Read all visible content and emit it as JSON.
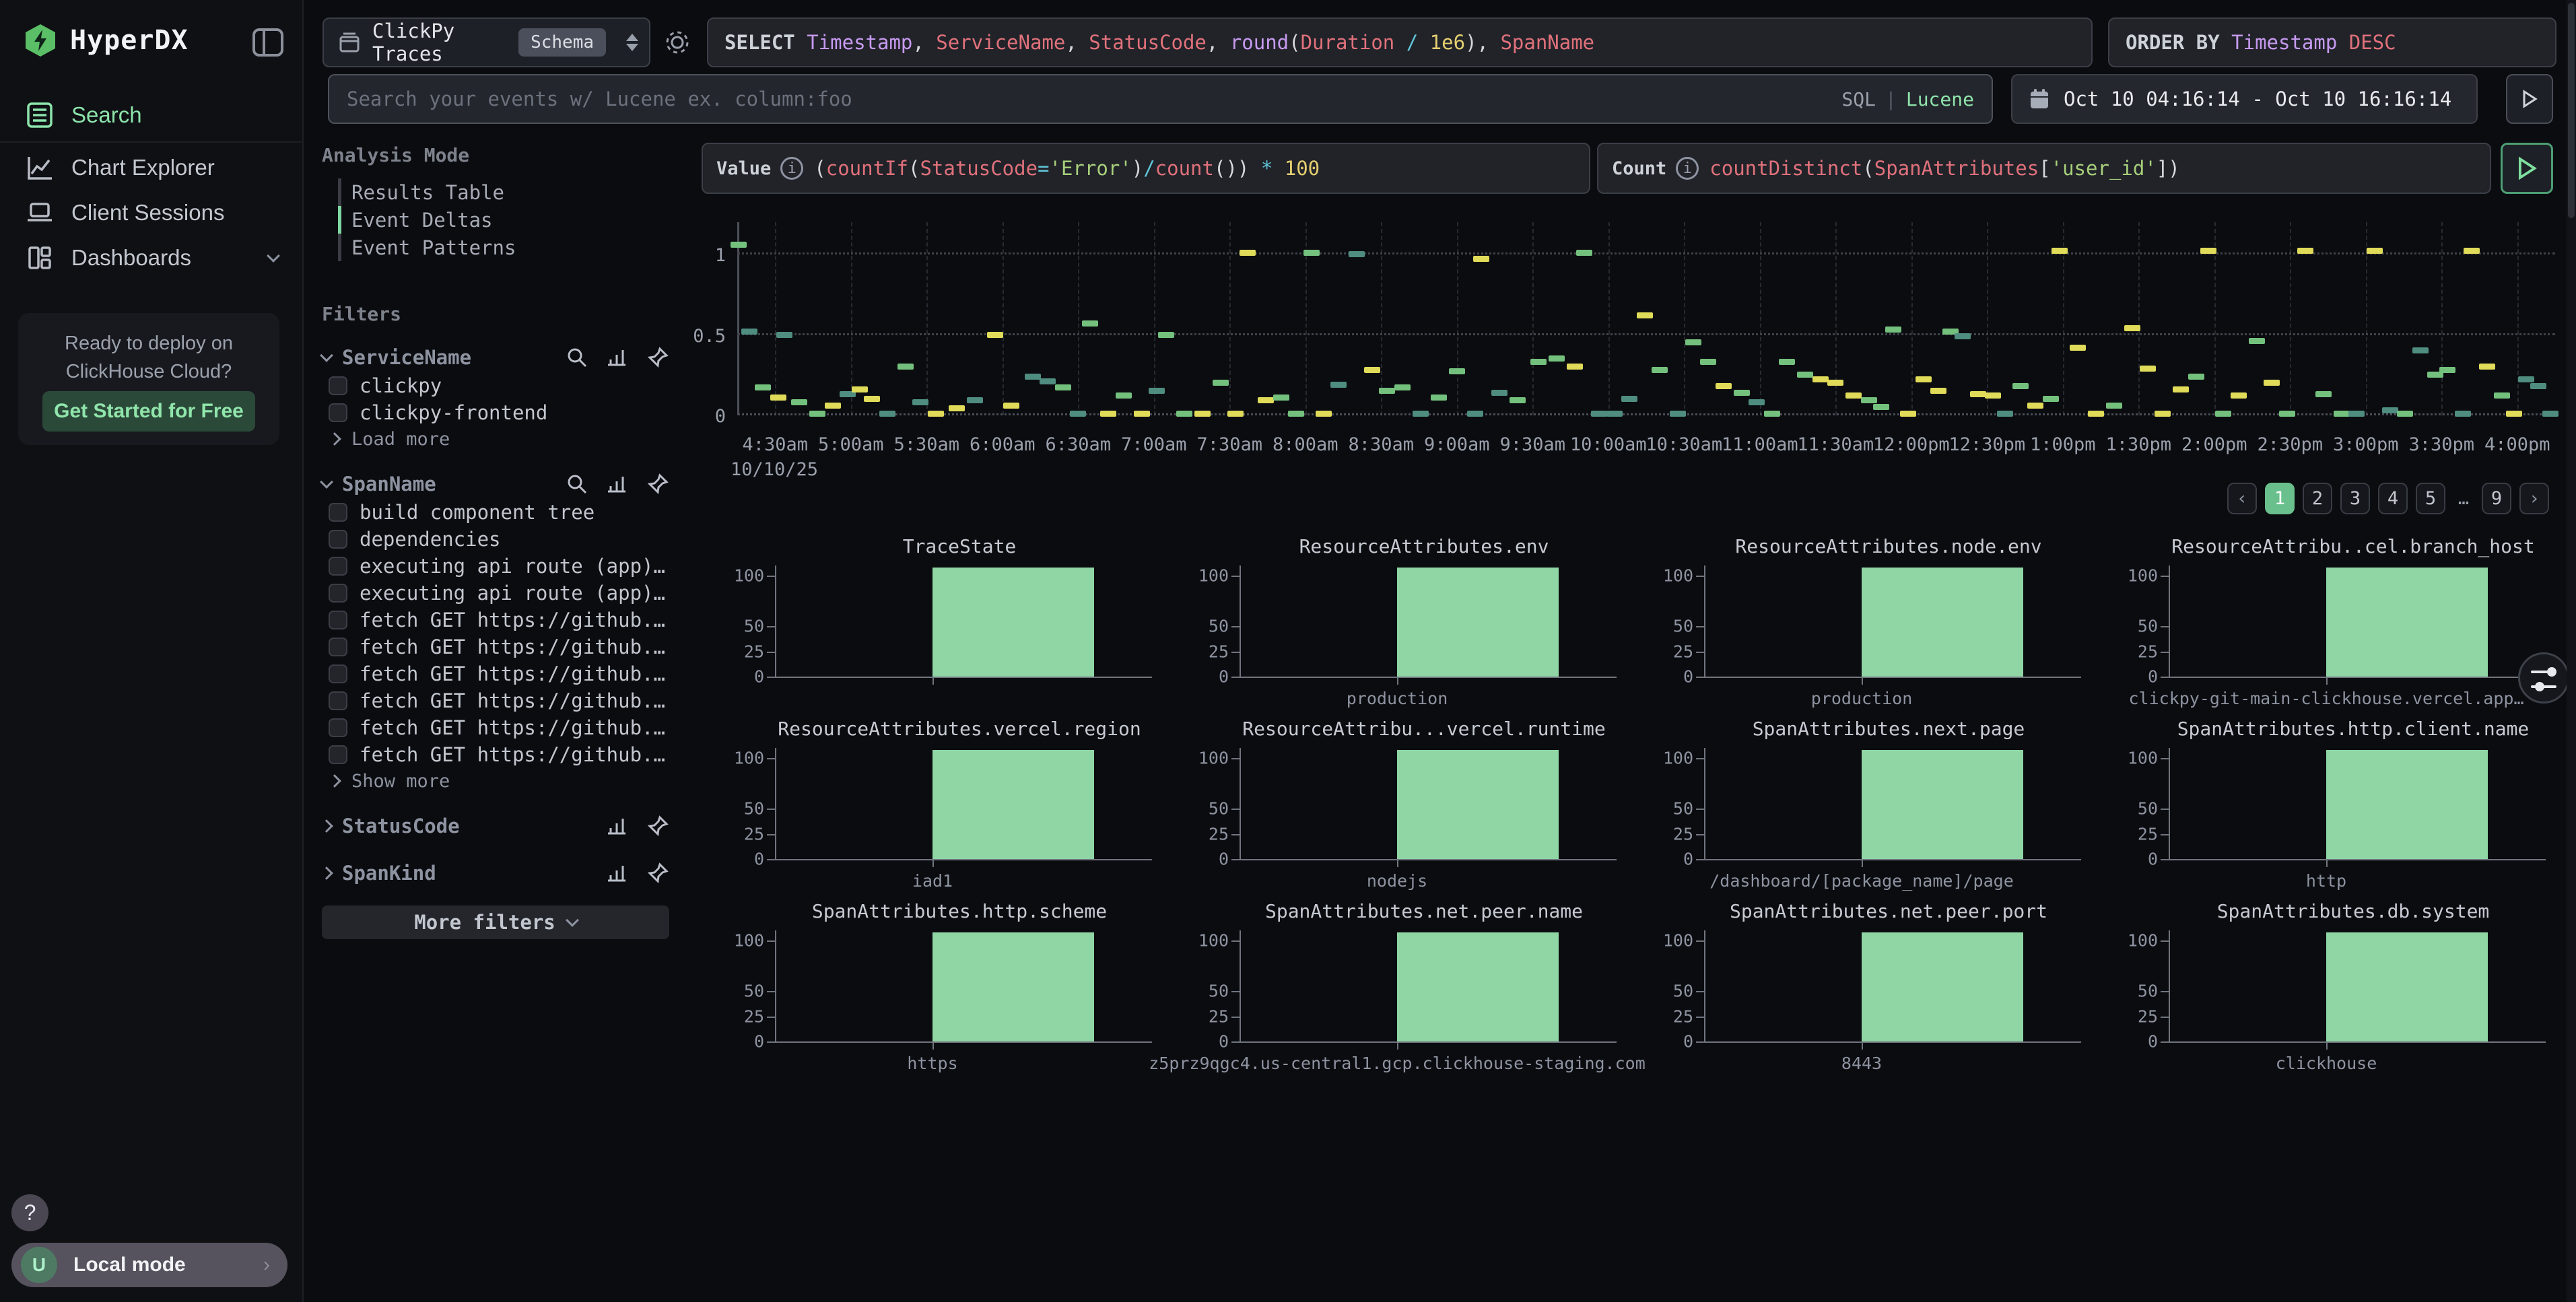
{
  "app_title": "HyperDX",
  "sidebar": {
    "nav": [
      {
        "label": "Search",
        "active": true
      },
      {
        "label": "Chart Explorer",
        "active": false
      },
      {
        "label": "Client Sessions",
        "active": false
      },
      {
        "label": "Dashboards",
        "active": false
      }
    ],
    "promo": {
      "line1": "Ready to deploy on",
      "line2": "ClickHouse Cloud?",
      "cta": "Get Started for Free"
    },
    "help_label": "?",
    "local_mode": {
      "avatar": "U",
      "label": "Local mode"
    }
  },
  "topbar": {
    "source": {
      "name": "ClickPy Traces",
      "badge": "Schema"
    },
    "select": {
      "keyword": "SELECT",
      "tokens": [
        [
          "Timestamp",
          "purple"
        ],
        [
          ", ",
          "fg"
        ],
        [
          "ServiceName",
          "red"
        ],
        [
          ", ",
          "fg"
        ],
        [
          "StatusCode",
          "red"
        ],
        [
          ", ",
          "fg"
        ],
        [
          "round",
          "purple"
        ],
        [
          "(",
          "fg"
        ],
        [
          "Duration",
          "red"
        ],
        [
          " / ",
          "cyan"
        ],
        [
          "1e6",
          "yellow"
        ],
        [
          "), ",
          "fg"
        ],
        [
          "SpanName",
          "red"
        ]
      ]
    },
    "order_by": {
      "keyword": "ORDER BY",
      "tokens": [
        [
          "Timestamp",
          "purple"
        ],
        [
          " DESC",
          "red"
        ]
      ]
    },
    "search": {
      "placeholder": "Search your events w/ Lucene ex. column:foo",
      "mode_sql": "SQL",
      "mode_sep": "|",
      "mode_lucene": "Lucene"
    },
    "date_range": "Oct 10 04:16:14 - Oct 10 16:16:14"
  },
  "analysis_mode": {
    "title": "Analysis Mode",
    "options": [
      "Results Table",
      "Event Deltas",
      "Event Patterns"
    ],
    "active_index": 1
  },
  "filters": {
    "title": "Filters",
    "groups": [
      {
        "name": "ServiceName",
        "expanded": true,
        "icons": [
          "search",
          "bars",
          "pin"
        ],
        "items": [
          "clickpy",
          "clickpy-frontend"
        ],
        "more": "Load more"
      },
      {
        "name": "SpanName",
        "expanded": true,
        "icons": [
          "search",
          "bars",
          "pin"
        ],
        "items": [
          "build component tree",
          "dependencies",
          "executing api route (app)…",
          "executing api route (app)…",
          "fetch GET https://github.…",
          "fetch GET https://github.…",
          "fetch GET https://github.…",
          "fetch GET https://github.…",
          "fetch GET https://github.…",
          "fetch GET https://github.…"
        ],
        "more": "Show more"
      },
      {
        "name": "StatusCode",
        "expanded": false,
        "icons": [
          "bars",
          "pin"
        ],
        "items": [],
        "more": ""
      },
      {
        "name": "SpanKind",
        "expanded": false,
        "icons": [
          "bars",
          "pin"
        ],
        "items": [],
        "more": ""
      }
    ],
    "more_filters": "More filters"
  },
  "expressions": {
    "value": {
      "label": "Value",
      "tokens": [
        [
          "(",
          "fg"
        ],
        [
          "countIf",
          "red"
        ],
        [
          "(",
          "fg"
        ],
        [
          "StatusCode",
          "red"
        ],
        [
          "=",
          "cyan"
        ],
        [
          "'Error'",
          "green"
        ],
        [
          ")",
          "fg"
        ],
        [
          "/",
          "cyan"
        ],
        [
          "count",
          "red"
        ],
        [
          "())",
          "fg"
        ],
        [
          " * ",
          "cyan"
        ],
        [
          "100",
          "yellow"
        ]
      ]
    },
    "count": {
      "label": "Count",
      "tokens": [
        [
          "countDistinct",
          "red"
        ],
        [
          "(",
          "fg"
        ],
        [
          "SpanAttributes",
          "red"
        ],
        [
          "[",
          "fg"
        ],
        [
          "'user_id'",
          "green"
        ],
        [
          "])",
          "fg"
        ]
      ]
    }
  },
  "pagination": {
    "prev": "‹",
    "pages": [
      "1",
      "2",
      "3",
      "4",
      "5",
      "…",
      "9"
    ],
    "active": "1",
    "next": "›"
  },
  "chart_data": [
    {
      "type": "scatter",
      "title": "Event Deltas timeline",
      "x_domain": [
        4.25,
        16.25
      ],
      "x_tick_start": 4.5,
      "x_tick_step": 0.5,
      "x_tick_labels": [
        "4:30am",
        "5:00am",
        "5:30am",
        "6:00am",
        "6:30am",
        "7:00am",
        "7:30am",
        "8:00am",
        "8:30am",
        "9:00am",
        "9:30am",
        "10:00am",
        "10:30am",
        "11:00am",
        "11:30am",
        "12:00pm",
        "12:30pm",
        "1:00pm",
        "1:30pm",
        "2:00pm",
        "2:30pm",
        "3:00pm",
        "3:30pm",
        "4:00pm"
      ],
      "x_axis_date": "10/10/25",
      "y_ticks": [
        "0",
        "0.5",
        "1"
      ],
      "y_domain": [
        0,
        1.2
      ],
      "grid": true,
      "palette": [
        "#e0db59",
        "#74c17e",
        "#4f8d80"
      ],
      "marks": [
        [
          4.26,
          1.06,
          1
        ],
        [
          4.33,
          0.52,
          2
        ],
        [
          4.56,
          0.5,
          2
        ],
        [
          4.42,
          0.17,
          1
        ],
        [
          4.52,
          0.11,
          0
        ],
        [
          4.66,
          0.08,
          1
        ],
        [
          4.78,
          0.01,
          1
        ],
        [
          4.88,
          0.06,
          0
        ],
        [
          4.98,
          0.13,
          2
        ],
        [
          5.06,
          0.16,
          0
        ],
        [
          5.14,
          0.1,
          0
        ],
        [
          5.24,
          0.01,
          2
        ],
        [
          5.36,
          0.3,
          1
        ],
        [
          5.46,
          0.08,
          2
        ],
        [
          5.56,
          0.01,
          0
        ],
        [
          5.7,
          0.04,
          0
        ],
        [
          5.82,
          0.09,
          2
        ],
        [
          5.95,
          0.5,
          0
        ],
        [
          6.06,
          0.06,
          0
        ],
        [
          6.2,
          0.24,
          2
        ],
        [
          6.3,
          0.21,
          2
        ],
        [
          6.4,
          0.17,
          1
        ],
        [
          6.5,
          0.01,
          2
        ],
        [
          6.58,
          0.57,
          1
        ],
        [
          6.7,
          0.01,
          0
        ],
        [
          6.8,
          0.12,
          1
        ],
        [
          6.92,
          0.01,
          0
        ],
        [
          7.02,
          0.15,
          2
        ],
        [
          7.08,
          0.5,
          1
        ],
        [
          7.2,
          0.01,
          1
        ],
        [
          7.32,
          0.01,
          0
        ],
        [
          7.44,
          0.2,
          1
        ],
        [
          7.54,
          0.01,
          0
        ],
        [
          7.62,
          1.01,
          0
        ],
        [
          7.74,
          0.09,
          0
        ],
        [
          7.84,
          0.11,
          1
        ],
        [
          7.94,
          0.01,
          1
        ],
        [
          8.04,
          1.01,
          1
        ],
        [
          8.12,
          0.01,
          0
        ],
        [
          8.22,
          0.19,
          2
        ],
        [
          8.34,
          1.0,
          2
        ],
        [
          8.44,
          0.28,
          0
        ],
        [
          8.54,
          0.15,
          1
        ],
        [
          8.64,
          0.17,
          1
        ],
        [
          8.76,
          0.01,
          2
        ],
        [
          8.88,
          0.11,
          1
        ],
        [
          9.0,
          0.27,
          1
        ],
        [
          9.12,
          0.01,
          2
        ],
        [
          9.16,
          0.97,
          0
        ],
        [
          9.28,
          0.14,
          2
        ],
        [
          9.4,
          0.09,
          1
        ],
        [
          9.54,
          0.33,
          1
        ],
        [
          9.66,
          0.35,
          1
        ],
        [
          9.78,
          0.3,
          0
        ],
        [
          9.84,
          1.01,
          1
        ],
        [
          9.94,
          0.01,
          2
        ],
        [
          10.04,
          0.01,
          2
        ],
        [
          10.14,
          0.1,
          2
        ],
        [
          10.24,
          0.62,
          0
        ],
        [
          10.34,
          0.28,
          1
        ],
        [
          10.46,
          0.01,
          2
        ],
        [
          10.56,
          0.45,
          1
        ],
        [
          10.66,
          0.33,
          1
        ],
        [
          10.76,
          0.18,
          0
        ],
        [
          10.88,
          0.14,
          1
        ],
        [
          10.98,
          0.08,
          2
        ],
        [
          11.08,
          0.01,
          1
        ],
        [
          11.18,
          0.33,
          1
        ],
        [
          11.3,
          0.25,
          1
        ],
        [
          11.4,
          0.22,
          0
        ],
        [
          11.5,
          0.2,
          0
        ],
        [
          11.62,
          0.12,
          0
        ],
        [
          11.72,
          0.09,
          1
        ],
        [
          11.8,
          0.05,
          1
        ],
        [
          11.88,
          0.53,
          1
        ],
        [
          11.98,
          0.01,
          0
        ],
        [
          12.08,
          0.22,
          0
        ],
        [
          12.18,
          0.15,
          0
        ],
        [
          12.26,
          0.52,
          1
        ],
        [
          12.34,
          0.49,
          2
        ],
        [
          12.44,
          0.13,
          0
        ],
        [
          12.54,
          0.12,
          0
        ],
        [
          12.62,
          0.01,
          2
        ],
        [
          12.72,
          0.18,
          1
        ],
        [
          12.82,
          0.06,
          0
        ],
        [
          12.92,
          0.1,
          1
        ],
        [
          12.98,
          1.02,
          0
        ],
        [
          13.1,
          0.42,
          0
        ],
        [
          13.22,
          0.01,
          0
        ],
        [
          13.34,
          0.06,
          1
        ],
        [
          13.46,
          0.54,
          0
        ],
        [
          13.56,
          0.29,
          0
        ],
        [
          13.66,
          0.01,
          0
        ],
        [
          13.78,
          0.16,
          0
        ],
        [
          13.88,
          0.24,
          1
        ],
        [
          13.96,
          1.02,
          0
        ],
        [
          14.06,
          0.01,
          1
        ],
        [
          14.16,
          0.12,
          0
        ],
        [
          14.28,
          0.46,
          1
        ],
        [
          14.38,
          0.2,
          0
        ],
        [
          14.48,
          0.01,
          1
        ],
        [
          14.6,
          1.02,
          0
        ],
        [
          14.72,
          0.13,
          1
        ],
        [
          14.84,
          0.01,
          1
        ],
        [
          14.94,
          0.01,
          2
        ],
        [
          15.06,
          1.02,
          0
        ],
        [
          15.16,
          0.03,
          2
        ],
        [
          15.26,
          0.01,
          1
        ],
        [
          15.36,
          0.4,
          2
        ],
        [
          15.46,
          0.25,
          1
        ],
        [
          15.54,
          0.28,
          1
        ],
        [
          15.64,
          0.01,
          2
        ],
        [
          15.7,
          1.02,
          0
        ],
        [
          15.8,
          0.3,
          0
        ],
        [
          15.9,
          0.12,
          1
        ],
        [
          15.98,
          0.01,
          0
        ],
        [
          16.06,
          0.22,
          2
        ],
        [
          16.14,
          0.18,
          2
        ],
        [
          16.22,
          0.01,
          2
        ]
      ]
    },
    {
      "type": "bar",
      "y_ticks": [
        100,
        50,
        25,
        0
      ],
      "ylim": [
        0,
        110
      ],
      "bar_color": "#8fd6a4",
      "charts": [
        {
          "title": "TraceState",
          "category": "",
          "value": 100
        },
        {
          "title": "ResourceAttributes.env",
          "category": "production",
          "value": 100
        },
        {
          "title": "ResourceAttributes.node.env",
          "category": "production",
          "value": 100
        },
        {
          "title": "ResourceAttribu..cel.branch_host",
          "category": "clickpy-git-main-clickhouse.vercel.app…",
          "value": 100
        },
        {
          "title": "ResourceAttributes.vercel.region",
          "category": "iad1",
          "value": 100
        },
        {
          "title": "ResourceAttribu...vercel.runtime",
          "category": "nodejs",
          "value": 100
        },
        {
          "title": "SpanAttributes.next.page",
          "category": "/dashboard/[package_name]/page",
          "value": 100
        },
        {
          "title": "SpanAttributes.http.client.name",
          "category": "http",
          "value": 100
        },
        {
          "title": "SpanAttributes.http.scheme",
          "category": "https",
          "value": 100
        },
        {
          "title": "SpanAttributes.net.peer.name",
          "category": "z5prz9qgc4.us-central1.gcp.clickhouse-staging.com",
          "value": 100
        },
        {
          "title": "SpanAttributes.net.peer.port",
          "category": "8443",
          "value": 100
        },
        {
          "title": "SpanAttributes.db.system",
          "category": "clickhouse",
          "value": 100
        }
      ]
    }
  ]
}
